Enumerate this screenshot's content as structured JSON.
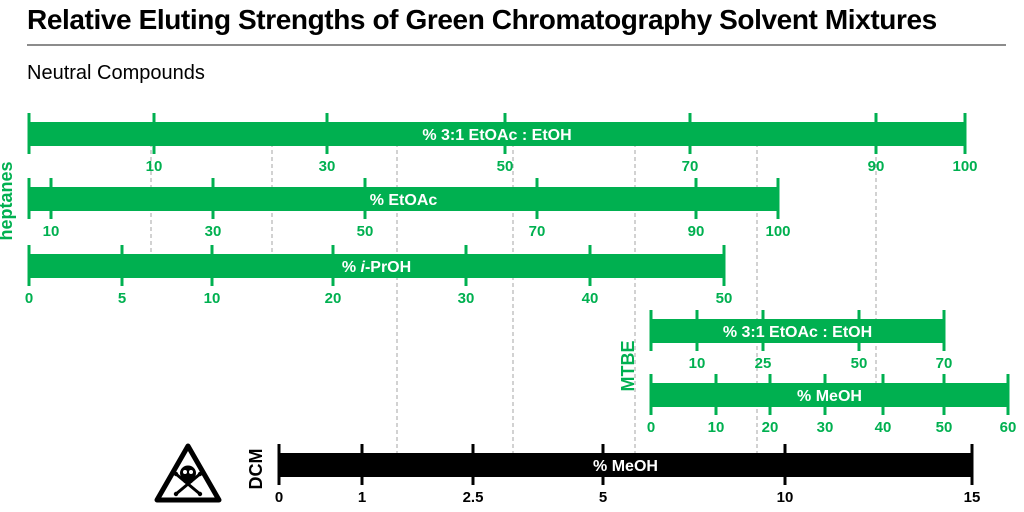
{
  "header": {
    "title": "Relative Eluting Strengths of Green Chromatography Solvent Mixtures",
    "subtitle": "Neutral Compounds"
  },
  "colors": {
    "green": "#00b050",
    "black": "#000000",
    "grid": "#a6a6a6"
  },
  "chart_data": {
    "type": "bar",
    "groups": [
      {
        "label": "heptanes",
        "color": "#00b050",
        "scales": [
          "% 3:1 EtOAc : EtOH",
          "% EtOAc",
          "% i-PrOH"
        ]
      },
      {
        "label": "MTBE",
        "color": "#00b050",
        "scales": [
          "% 3:1 EtOAc : EtOH",
          "% MeOH"
        ]
      },
      {
        "label": "DCM",
        "color": "#000000",
        "scales": [
          "% MeOH"
        ]
      }
    ],
    "scales": [
      {
        "group": "heptanes",
        "label_prefix": "% 3:1 EtOAc : EtOH",
        "label_italic": "",
        "label_suffix": "",
        "ticks": [
          {
            "label": "10",
            "value": 10
          },
          {
            "label": "30",
            "value": 30
          },
          {
            "label": "50",
            "value": 50
          },
          {
            "label": "70",
            "value": 70
          },
          {
            "label": "90",
            "value": 90
          },
          {
            "label": "100",
            "value": 100
          }
        ]
      },
      {
        "group": "heptanes",
        "label_prefix": "% EtOAc",
        "label_italic": "",
        "label_suffix": "",
        "ticks": [
          {
            "label": "10",
            "value": 10
          },
          {
            "label": "30",
            "value": 30
          },
          {
            "label": "50",
            "value": 50
          },
          {
            "label": "70",
            "value": 70
          },
          {
            "label": "90",
            "value": 90
          },
          {
            "label": "100",
            "value": 100
          }
        ]
      },
      {
        "group": "heptanes",
        "label_prefix": "% ",
        "label_italic": "i",
        "label_suffix": "-PrOH",
        "ticks": [
          {
            "label": "0",
            "value": 0
          },
          {
            "label": "5",
            "value": 5
          },
          {
            "label": "10",
            "value": 10
          },
          {
            "label": "20",
            "value": 20
          },
          {
            "label": "30",
            "value": 30
          },
          {
            "label": "40",
            "value": 40
          },
          {
            "label": "50",
            "value": 50
          }
        ]
      },
      {
        "group": "MTBE",
        "label_prefix": "% 3:1 EtOAc : EtOH",
        "label_italic": "",
        "label_suffix": "",
        "ticks": [
          {
            "label": "10",
            "value": 10
          },
          {
            "label": "25",
            "value": 25
          },
          {
            "label": "50",
            "value": 50
          },
          {
            "label": "70",
            "value": 70
          }
        ]
      },
      {
        "group": "MTBE",
        "label_prefix": "% MeOH",
        "label_italic": "",
        "label_suffix": "",
        "ticks": [
          {
            "label": "0",
            "value": 0
          },
          {
            "label": "10",
            "value": 10
          },
          {
            "label": "20",
            "value": 20
          },
          {
            "label": "30",
            "value": 30
          },
          {
            "label": "40",
            "value": 40
          },
          {
            "label": "50",
            "value": 50
          },
          {
            "label": "60",
            "value": 60
          }
        ]
      },
      {
        "group": "DCM",
        "label_prefix": "% MeOH",
        "label_italic": "",
        "label_suffix": "",
        "ticks": [
          {
            "label": "0",
            "value": 0
          },
          {
            "label": "1",
            "value": 1
          },
          {
            "label": "2.5",
            "value": 2.5
          },
          {
            "label": "5",
            "value": 5
          },
          {
            "label": "10",
            "value": 10
          },
          {
            "label": "15",
            "value": 15
          }
        ]
      }
    ],
    "gridlines": "dashed vertical lines marking equal eluting strength",
    "hazard_icon": "skull-and-crossbones-warning-icon"
  }
}
